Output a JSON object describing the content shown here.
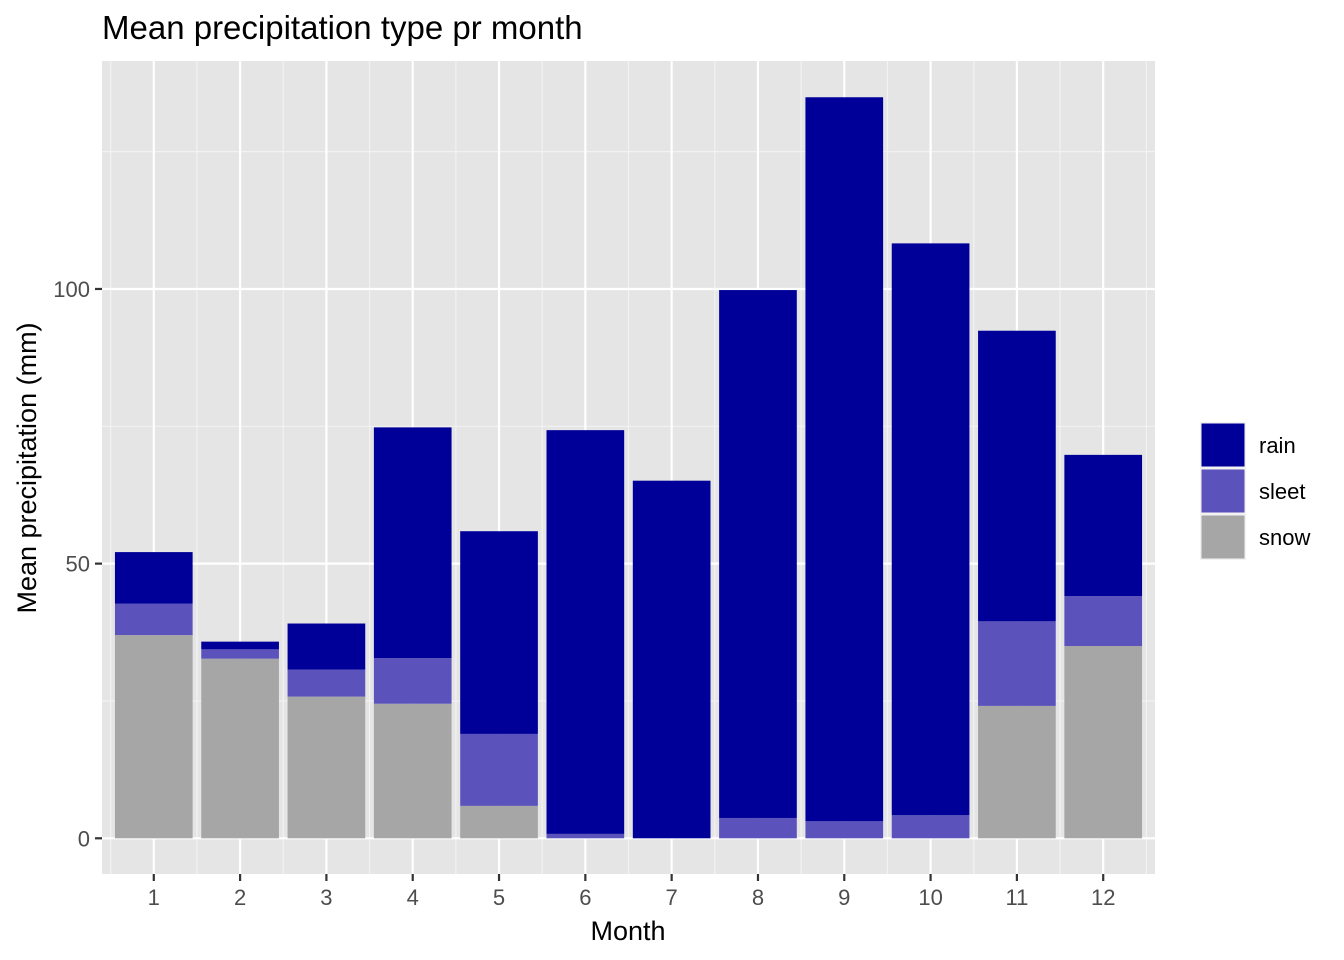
{
  "chart_data": {
    "type": "bar",
    "stacked": true,
    "title": "Mean precipitation type pr month",
    "xlabel": "Month",
    "ylabel": "Mean precipitation (mm)",
    "categories": [
      "1",
      "2",
      "3",
      "4",
      "5",
      "6",
      "7",
      "8",
      "9",
      "10",
      "11",
      "12"
    ],
    "y_ticks": [
      0,
      50,
      100
    ],
    "y_tick_labels": [
      "0",
      "50",
      "100"
    ],
    "ylim": [
      -6.5,
      141.5
    ],
    "grid": true,
    "legend_position": "right",
    "series": [
      {
        "name": "snow",
        "color": "#a6a6a6",
        "values": [
          37,
          32.7,
          25.8,
          24.5,
          5.9,
          0,
          0,
          0,
          0,
          0,
          24.1,
          35
        ]
      },
      {
        "name": "sleet",
        "color": "#5b53bb",
        "values": [
          5.7,
          1.7,
          4.9,
          8.3,
          13.1,
          0.8,
          0,
          3.7,
          3.1,
          4.2,
          15.4,
          9.1
        ]
      },
      {
        "name": "rain",
        "color": "#000099",
        "values": [
          9.4,
          1.4,
          8.4,
          42,
          36.9,
          73.5,
          65.1,
          96.1,
          131.8,
          104.1,
          52.9,
          25.7
        ]
      }
    ]
  }
}
